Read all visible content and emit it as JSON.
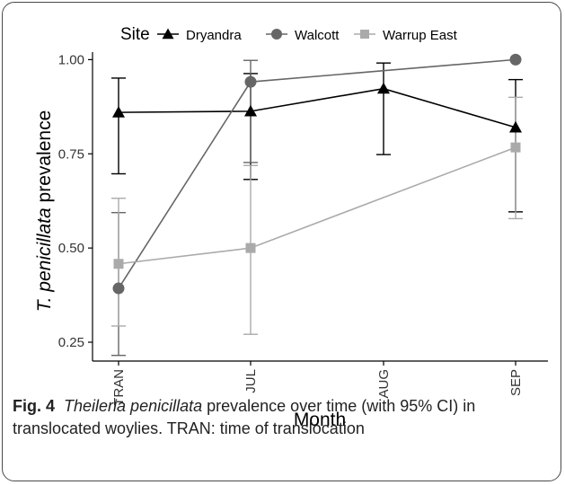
{
  "chart_data": {
    "type": "line",
    "xlabel": "Month",
    "ylabel_italic": "T. penicillata",
    "ylabel_rest": " prevalence",
    "categories": [
      "TRAN",
      "JUL",
      "AUG",
      "SEP"
    ],
    "y_ticks": [
      "0.25",
      "0.50",
      "0.75",
      "1.00"
    ],
    "y_tick_values": [
      0.25,
      0.5,
      0.75,
      1.0
    ],
    "ylim": [
      0.2,
      1.02
    ],
    "grid": false,
    "legend": {
      "title": "Site",
      "position": "top"
    },
    "series": [
      {
        "name": "Dryandra",
        "marker": "triangle",
        "color": "#000000",
        "x": [
          "TRAN",
          "JUL",
          "AUG",
          "SEP"
        ],
        "y": [
          0.86,
          0.863,
          0.923,
          0.82
        ],
        "ci_low": [
          0.697,
          0.682,
          0.748,
          0.596
        ],
        "ci_high": [
          0.951,
          0.963,
          0.991,
          0.947
        ]
      },
      {
        "name": "Walcott",
        "marker": "circle",
        "color": "#666666",
        "x": [
          "TRAN",
          "JUL",
          "SEP"
        ],
        "y": [
          0.393,
          0.941,
          1.0
        ],
        "ci_low": [
          0.215,
          0.727,
          null
        ],
        "ci_high": [
          0.594,
          0.998,
          null
        ]
      },
      {
        "name": "Warrup East",
        "marker": "square",
        "color": "#aaaaaa",
        "x": [
          "TRAN",
          "JUL",
          "SEP"
        ],
        "y": [
          0.458,
          0.5,
          0.767
        ],
        "ci_low": [
          0.293,
          0.271,
          0.578
        ],
        "ci_high": [
          0.632,
          0.719,
          0.9
        ]
      }
    ]
  },
  "caption": {
    "label": "Fig. 4",
    "italic": "Theileria penicillata",
    "line1_rest": " prevalence over time (with 95% CI) in",
    "line2": "translocated woylies. TRAN: time of translocation"
  }
}
